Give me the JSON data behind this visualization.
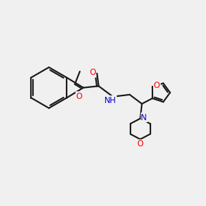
{
  "bg_color": "#f0f0f0",
  "bond_color": "#1a1a1a",
  "oxygen_color": "#ff0000",
  "nitrogen_color": "#0000cc",
  "hydrogen_color": "#708090",
  "line_width": 1.6,
  "figsize": [
    3.0,
    3.0
  ],
  "dpi": 100,
  "xlim": [
    0,
    10
  ],
  "ylim": [
    0,
    10
  ]
}
